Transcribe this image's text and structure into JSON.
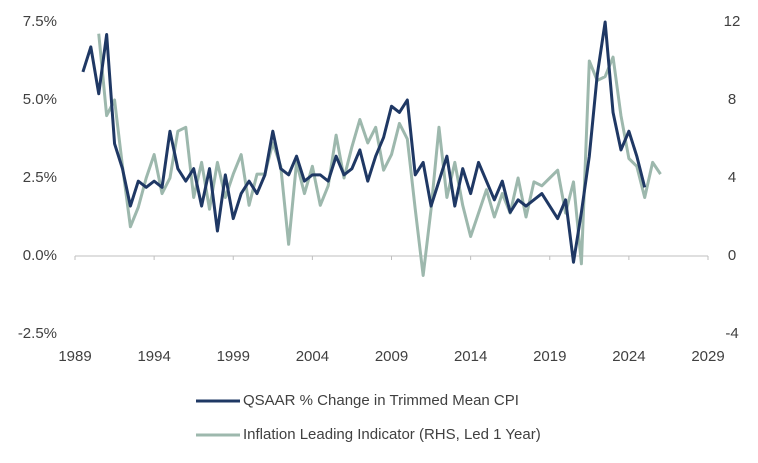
{
  "chart_data": {
    "type": "line",
    "xlim": [
      1989,
      2029
    ],
    "xticks": [
      1989,
      1994,
      1999,
      2004,
      2009,
      2014,
      2019,
      2024,
      2029
    ],
    "ylim": [
      -2.5,
      7.5
    ],
    "yticks": [
      {
        "value": -2.5,
        "label": "-2.5%"
      },
      {
        "value": 0,
        "label": "0.0%"
      },
      {
        "value": 2.5,
        "label": "2.5%"
      },
      {
        "value": 5,
        "label": "5.0%"
      },
      {
        "value": 7.5,
        "label": "7.5%"
      }
    ],
    "y2lim": [
      -4,
      12
    ],
    "y2ticks": [
      -4,
      0,
      4,
      8,
      12
    ],
    "grid": false,
    "legend": "bottom",
    "series": [
      {
        "name": "QSAAR % Change in Trimmed Mean CPI",
        "color": "#1f3864",
        "x": [
          1989.5,
          1990,
          1990.5,
          1991,
          1991.5,
          1992,
          1992.5,
          1993,
          1993.5,
          1994,
          1994.5,
          1995,
          1995.5,
          1996,
          1996.5,
          1997,
          1997.5,
          1998,
          1998.5,
          1999,
          1999.5,
          2000,
          2000.5,
          2001,
          2001.5,
          2002,
          2002.5,
          2003,
          2003.5,
          2004,
          2004.5,
          2005,
          2005.5,
          2006,
          2006.5,
          2007,
          2007.5,
          2008,
          2008.5,
          2009,
          2009.5,
          2010,
          2010.5,
          2011,
          2011.5,
          2012,
          2012.5,
          2013,
          2013.5,
          2014,
          2014.5,
          2015,
          2015.5,
          2016,
          2016.5,
          2017,
          2017.5,
          2018,
          2018.5,
          2019,
          2019.5,
          2020,
          2020.5,
          2021,
          2021.5,
          2022,
          2022.5,
          2023,
          2023.5,
          2024,
          2024.5,
          2025
        ],
        "values": [
          5.9,
          6.7,
          5.2,
          7.1,
          3.6,
          2.8,
          1.6,
          2.4,
          2.2,
          2.4,
          2.2,
          4.0,
          2.8,
          2.4,
          2.8,
          1.6,
          2.8,
          0.8,
          2.6,
          1.2,
          2.0,
          2.4,
          2.0,
          2.6,
          4.0,
          2.8,
          2.6,
          3.2,
          2.4,
          2.6,
          2.6,
          2.4,
          3.2,
          2.6,
          2.8,
          3.4,
          2.4,
          3.2,
          3.8,
          4.8,
          4.6,
          5.0,
          2.6,
          3.0,
          1.6,
          2.4,
          3.2,
          1.6,
          2.8,
          2.0,
          3.0,
          2.4,
          1.8,
          2.4,
          1.4,
          1.8,
          1.6,
          1.8,
          2.0,
          1.6,
          1.2,
          1.8,
          -0.2,
          1.4,
          3.2,
          5.8,
          7.5,
          4.6,
          3.4,
          4.0,
          3.2,
          2.2
        ]
      },
      {
        "name": "Inflation Leading Indicator (RHS, Led 1 Year)",
        "color": "#9db8ad",
        "axis": "y2",
        "x": [
          1990.5,
          1991,
          1991.5,
          1992,
          1992.5,
          1993,
          1993.5,
          1994,
          1994.5,
          1995,
          1995.5,
          1996,
          1996.5,
          1997,
          1997.5,
          1998,
          1998.5,
          1999,
          1999.5,
          2000,
          2000.5,
          2001,
          2001.5,
          2002,
          2002.5,
          2003,
          2003.5,
          2004,
          2004.5,
          2005,
          2005.5,
          2006,
          2006.5,
          2007,
          2007.5,
          2008,
          2008.5,
          2009,
          2009.5,
          2010,
          2010.5,
          2011,
          2011.5,
          2012,
          2012.5,
          2013,
          2013.5,
          2014,
          2014.5,
          2015,
          2015.5,
          2016,
          2016.5,
          2017,
          2017.5,
          2018,
          2018.5,
          2019,
          2019.5,
          2020,
          2020.5,
          2021,
          2021.5,
          2022,
          2022.5,
          2023,
          2023.5,
          2024,
          2024.5,
          2025,
          2025.5,
          2026
        ],
        "values": [
          11.4,
          7.2,
          8.0,
          4.6,
          1.5,
          2.5,
          4.0,
          5.2,
          3.2,
          4.0,
          6.4,
          6.6,
          3.0,
          4.8,
          2.4,
          4.8,
          3.0,
          4.2,
          5.2,
          2.6,
          4.2,
          4.2,
          5.8,
          4.6,
          0.6,
          4.8,
          3.2,
          4.6,
          2.6,
          3.6,
          6.2,
          4.0,
          5.6,
          7.0,
          5.8,
          6.6,
          4.4,
          5.2,
          6.8,
          6.0,
          2.4,
          -1.0,
          2.4,
          6.6,
          3.0,
          4.8,
          2.6,
          1.0,
          2.2,
          3.4,
          2.0,
          3.2,
          2.2,
          4.0,
          2.0,
          3.8,
          3.6,
          4.0,
          4.4,
          2.2,
          3.8,
          -0.4,
          10.0,
          9.0,
          9.2,
          10.2,
          7.2,
          5.0,
          4.6,
          3.0,
          4.8,
          4.2
        ]
      }
    ]
  }
}
